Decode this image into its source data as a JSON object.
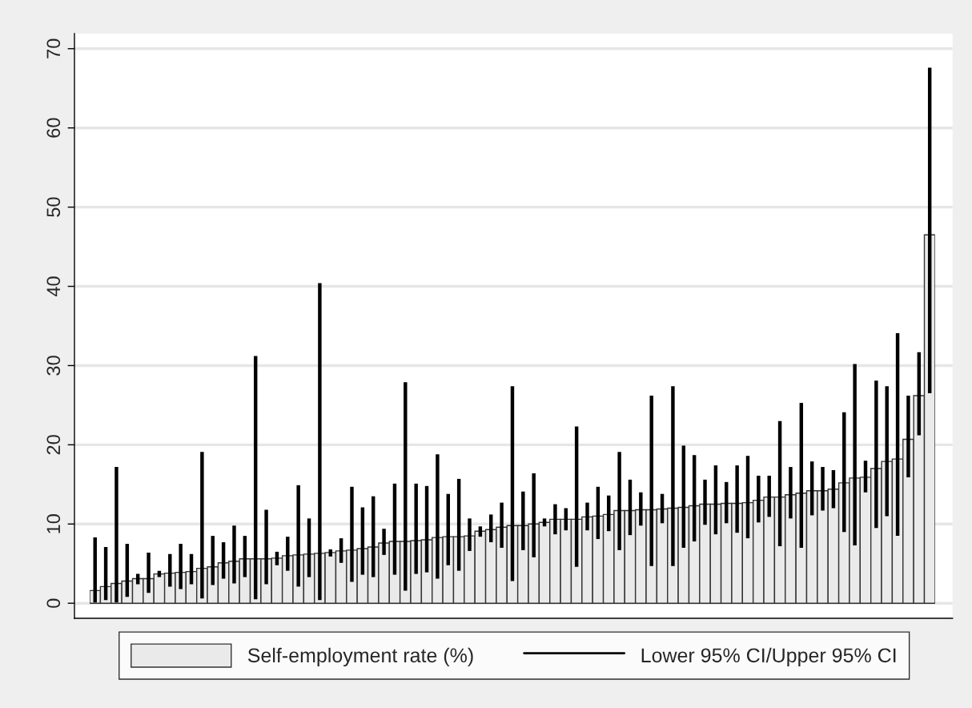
{
  "chart_data": {
    "type": "bar",
    "categories": [
      null,
      null,
      null,
      null,
      null,
      null,
      null,
      null,
      null,
      null,
      null,
      null,
      null,
      null,
      null,
      null,
      null,
      null,
      null,
      null,
      null,
      null,
      null,
      null,
      null,
      null,
      null,
      null,
      null,
      null,
      null,
      null,
      null,
      null,
      null,
      null,
      null,
      null,
      null,
      null,
      null,
      null,
      null,
      null,
      null,
      null,
      null,
      null,
      null,
      null,
      null,
      null,
      null,
      null,
      null,
      null,
      null,
      null,
      null,
      null,
      null,
      null,
      null,
      null,
      null,
      null,
      null,
      null,
      null,
      null,
      null,
      null,
      null,
      null,
      null,
      null,
      null,
      null,
      null
    ],
    "series": [
      {
        "name": "Self-employment rate (%)",
        "color": "#eaeaea",
        "values": [
          1.6,
          2.1,
          2.5,
          2.8,
          3.1,
          3.1,
          3.7,
          3.8,
          3.9,
          4.0,
          4.4,
          4.6,
          5.1,
          5.3,
          5.6,
          5.6,
          5.6,
          5.7,
          6.0,
          6.1,
          6.2,
          6.3,
          6.4,
          6.6,
          6.7,
          6.9,
          7.1,
          7.6,
          7.8,
          7.8,
          7.9,
          8.0,
          8.3,
          8.4,
          8.4,
          8.5,
          9.1,
          9.3,
          9.6,
          9.8,
          9.8,
          10.0,
          10.2,
          10.6,
          10.6,
          10.6,
          10.9,
          11.0,
          11.2,
          11.7,
          11.7,
          11.8,
          11.8,
          11.9,
          12.0,
          12.1,
          12.3,
          12.5,
          12.5,
          12.6,
          12.6,
          12.7,
          13.0,
          13.4,
          13.4,
          13.7,
          13.9,
          14.2,
          14.2,
          14.4,
          15.2,
          15.8,
          15.9,
          17.0,
          17.9,
          18.2,
          20.7,
          26.2,
          46.5
        ],
        "errors": [
          [
            0.1,
            8.3
          ],
          [
            0.4,
            7.1
          ],
          [
            0.1,
            17.2
          ],
          [
            0.8,
            7.5
          ],
          [
            2.4,
            3.7
          ],
          [
            1.3,
            6.4
          ],
          [
            3.3,
            4.1
          ],
          [
            2.1,
            6.2
          ],
          [
            1.8,
            7.5
          ],
          [
            2.4,
            6.2
          ],
          [
            0.6,
            19.1
          ],
          [
            2.3,
            8.5
          ],
          [
            3.1,
            7.7
          ],
          [
            2.5,
            9.8
          ],
          [
            3.3,
            8.5
          ],
          [
            0.5,
            31.2
          ],
          [
            2.4,
            11.8
          ],
          [
            4.8,
            6.5
          ],
          [
            4.1,
            8.4
          ],
          [
            2.1,
            14.9
          ],
          [
            3.3,
            10.7
          ],
          [
            0.4,
            40.4
          ],
          [
            5.9,
            6.8
          ],
          [
            5.1,
            8.2
          ],
          [
            2.7,
            14.7
          ],
          [
            3.6,
            12.1
          ],
          [
            3.3,
            13.5
          ],
          [
            6.1,
            9.4
          ],
          [
            3.6,
            15.1
          ],
          [
            1.6,
            27.9
          ],
          [
            3.7,
            15.1
          ],
          [
            3.9,
            14.8
          ],
          [
            3.1,
            18.8
          ],
          [
            4.8,
            13.8
          ],
          [
            4.1,
            15.7
          ],
          [
            6.6,
            10.7
          ],
          [
            8.4,
            9.7
          ],
          [
            7.7,
            11.2
          ],
          [
            7.0,
            12.7
          ],
          [
            2.8,
            27.4
          ],
          [
            6.7,
            14.1
          ],
          [
            5.8,
            16.4
          ],
          [
            9.7,
            10.7
          ],
          [
            8.7,
            12.5
          ],
          [
            9.2,
            12.0
          ],
          [
            4.6,
            22.3
          ],
          [
            9.2,
            12.7
          ],
          [
            8.1,
            14.7
          ],
          [
            9.1,
            13.6
          ],
          [
            6.7,
            19.1
          ],
          [
            8.6,
            15.6
          ],
          [
            9.8,
            14.0
          ],
          [
            4.7,
            26.2
          ],
          [
            10.1,
            13.8
          ],
          [
            4.7,
            27.4
          ],
          [
            7.0,
            19.9
          ],
          [
            7.8,
            18.7
          ],
          [
            9.9,
            15.6
          ],
          [
            8.7,
            17.4
          ],
          [
            10.1,
            15.3
          ],
          [
            8.9,
            17.4
          ],
          [
            8.2,
            18.6
          ],
          [
            10.2,
            16.1
          ],
          [
            10.9,
            16.1
          ],
          [
            7.2,
            23.0
          ],
          [
            10.7,
            17.2
          ],
          [
            7.0,
            25.3
          ],
          [
            11.1,
            17.9
          ],
          [
            11.7,
            17.2
          ],
          [
            12.0,
            16.8
          ],
          [
            9.0,
            24.1
          ],
          [
            7.3,
            30.2
          ],
          [
            14.0,
            18.0
          ],
          [
            9.5,
            28.1
          ],
          [
            11.0,
            27.4
          ],
          [
            8.5,
            34.1
          ],
          [
            15.9,
            26.2
          ],
          [
            21.2,
            31.7
          ],
          [
            26.5,
            67.6
          ]
        ]
      }
    ],
    "annotations": [
      "Lower 95% CI/Upper 95% CI"
    ],
    "ylim": [
      -1.9,
      71.9
    ],
    "yticks": [
      0,
      10,
      20,
      30,
      40,
      50,
      60,
      70
    ],
    "grid": "y",
    "legend": "bottom"
  }
}
